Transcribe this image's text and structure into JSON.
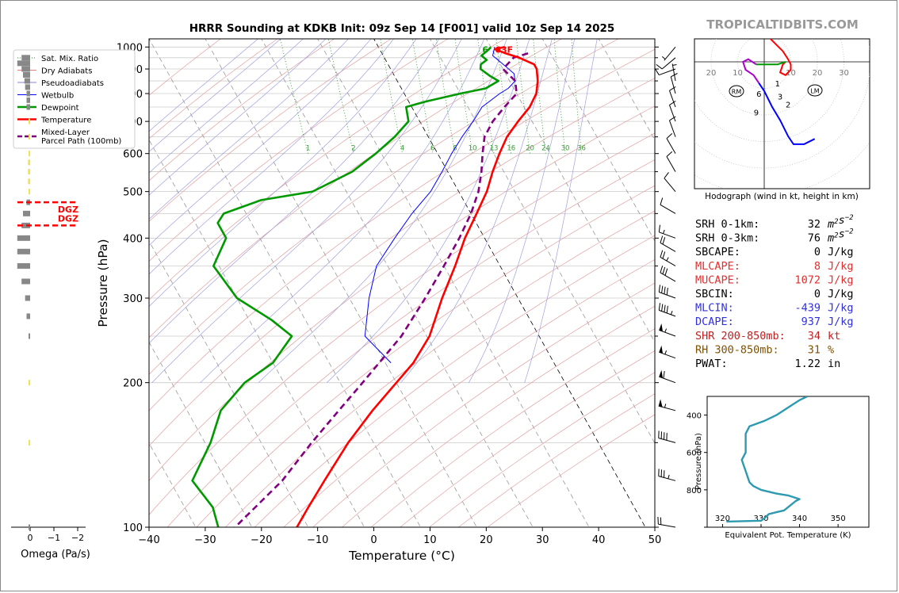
{
  "brand": "TROPICALTIDBITS.COM",
  "chart_data": [
    {
      "type": "skew-t",
      "title": "HRRR Sounding at KDKB Init: 09z Sep 14 [F001] valid 10z Sep 14 2025",
      "xlabel": "Temperature (°C)",
      "ylabel": "Pressure (hPa)",
      "xlim": [
        -40,
        50
      ],
      "ylim": [
        1040,
        100
      ],
      "x_ticks": [
        "−40",
        "−30",
        "−20",
        "−10",
        "0",
        "10",
        "20",
        "30",
        "40",
        "50"
      ],
      "x_tick_values": [
        -40,
        -30,
        -20,
        -10,
        0,
        10,
        20,
        30,
        40,
        50
      ],
      "y_ticks": [
        "100",
        "200",
        "300",
        "400",
        "500",
        "600",
        "700",
        "800",
        "900",
        "1000"
      ],
      "y_tick_values": [
        100,
        200,
        300,
        400,
        500,
        600,
        700,
        800,
        900,
        1000
      ],
      "legend": {
        "placement": "upper-left",
        "entries": [
          {
            "label": "Sat. Mix. Ratio",
            "color": "#2a8a2a",
            "style": "dotted"
          },
          {
            "label": "Dry Adiabats",
            "color": "#e08080",
            "style": "solid"
          },
          {
            "label": "Pseudoadiabats",
            "color": "#8080d0",
            "style": "solid"
          },
          {
            "label": "Wetbulb",
            "color": "#0000ff",
            "style": "solid"
          },
          {
            "label": "Dewpoint",
            "color": "#009900",
            "style": "solid-thick"
          },
          {
            "label": "Temperature",
            "color": "#ff0000",
            "style": "solid-thick"
          },
          {
            "label": "Mixed-Layer\nParcel Path (100mb)",
            "color": "#800080",
            "style": "dashed"
          }
        ]
      },
      "mixing_ratio_labels": [
        "1",
        "2",
        "4",
        "6",
        "8",
        "10",
        "13",
        "16",
        "20",
        "24",
        "30",
        "36"
      ],
      "mixing_ratio_values": [
        1,
        2,
        4,
        6,
        8,
        10,
        13,
        16,
        20,
        24,
        30,
        36
      ],
      "surface_dewpoint_label": "6",
      "surface_temp_label": "63F",
      "series": [
        {
          "name": "Temperature",
          "color": "#ff0000",
          "points": [
            [
              1000,
              22.5
            ],
            [
              990,
              20.5
            ],
            [
              970,
              22.0
            ],
            [
              950,
              24.0
            ],
            [
              920,
              26.0
            ],
            [
              900,
              26.0
            ],
            [
              850,
              25.0
            ],
            [
              800,
              23.5
            ],
            [
              750,
              21.0
            ],
            [
              700,
              17.5
            ],
            [
              650,
              14.0
            ],
            [
              600,
              11.0
            ],
            [
              550,
              8.0
            ],
            [
              500,
              5.0
            ],
            [
              450,
              1.0
            ],
            [
              400,
              -3.5
            ],
            [
              350,
              -8.0
            ],
            [
              300,
              -13.5
            ],
            [
              250,
              -19.5
            ],
            [
              220,
              -25.0
            ],
            [
              200,
              -30.0
            ],
            [
              175,
              -37.0
            ],
            [
              150,
              -44.5
            ],
            [
              125,
              -52.5
            ],
            [
              110,
              -58.0
            ],
            [
              100,
              -62.0
            ]
          ]
        },
        {
          "name": "Dewpoint",
          "color": "#009900",
          "points": [
            [
              1000,
              20.0
            ],
            [
              990,
              19.5
            ],
            [
              960,
              17.5
            ],
            [
              940,
              18.0
            ],
            [
              920,
              16.5
            ],
            [
              900,
              16.0
            ],
            [
              870,
              17.0
            ],
            [
              850,
              18.0
            ],
            [
              820,
              15.0
            ],
            [
              800,
              10.0
            ],
            [
              770,
              3.0
            ],
            [
              750,
              -1.0
            ],
            [
              700,
              -2.0
            ],
            [
              650,
              -6.0
            ],
            [
              600,
              -11.0
            ],
            [
              550,
              -17.0
            ],
            [
              500,
              -26.0
            ],
            [
              480,
              -36.0
            ],
            [
              450,
              -44.0
            ],
            [
              430,
              -46.0
            ],
            [
              400,
              -46.0
            ],
            [
              350,
              -51.0
            ],
            [
              300,
              -50.0
            ],
            [
              270,
              -46.0
            ],
            [
              250,
              -44.0
            ],
            [
              220,
              -50.0
            ],
            [
              200,
              -57.0
            ],
            [
              175,
              -64.0
            ],
            [
              150,
              -69.0
            ],
            [
              125,
              -76.0
            ],
            [
              110,
              -75.0
            ],
            [
              100,
              -76.0
            ]
          ]
        },
        {
          "name": "Wetbulb",
          "color": "#0000ff",
          "points": [
            [
              1000,
              20.7
            ],
            [
              960,
              19.5
            ],
            [
              920,
              20.5
            ],
            [
              880,
              21.5
            ],
            [
              850,
              21.0
            ],
            [
              820,
              19.0
            ],
            [
              800,
              17.0
            ],
            [
              750,
              12.5
            ],
            [
              700,
              9.5
            ],
            [
              650,
              6.0
            ],
            [
              600,
              2.5
            ],
            [
              550,
              -1.0
            ],
            [
              500,
              -5.0
            ],
            [
              450,
              -10.5
            ],
            [
              400,
              -16.0
            ],
            [
              350,
              -22.0
            ],
            [
              300,
              -26.5
            ],
            [
              250,
              -31.0
            ],
            [
              220,
              -29.0
            ]
          ]
        },
        {
          "name": "Mixed-Layer Parcel Path (100mb)",
          "color": "#800080",
          "points": [
            [
              970,
              26.0
            ],
            [
              950,
              23.0
            ],
            [
              900,
              20.0
            ],
            [
              850,
              21.0
            ],
            [
              800,
              20.0
            ],
            [
              750,
              16.5
            ],
            [
              700,
              13.0
            ],
            [
              650,
              10.0
            ],
            [
              600,
              8.0
            ],
            [
              550,
              6.0
            ],
            [
              500,
              3.5
            ],
            [
              450,
              0.0
            ],
            [
              400,
              -4.5
            ],
            [
              350,
              -10.0
            ],
            [
              300,
              -16.5
            ],
            [
              250,
              -24.5
            ],
            [
              200,
              -36.0
            ],
            [
              175,
              -43.0
            ],
            [
              150,
              -51.0
            ],
            [
              125,
              -60.0
            ],
            [
              100,
              -73.0
            ]
          ]
        }
      ]
    },
    {
      "type": "bar",
      "title": "",
      "xlabel": "Omega (Pa/s)",
      "x_ticks": [
        "0",
        "−1",
        "−2"
      ],
      "x_tick_values": [
        0,
        -1,
        -2
      ],
      "dgz_label": "DGZ",
      "dgz_pressures": [
        425,
        475
      ],
      "pressures": [
        100,
        150,
        200,
        250,
        275,
        300,
        325,
        350,
        375,
        400,
        425,
        450,
        475,
        500,
        525,
        550,
        575,
        600,
        650,
        700,
        750,
        775,
        800,
        825,
        850,
        875,
        900,
        925,
        950
      ],
      "values": [
        -0.02,
        -0.02,
        -0.02,
        -0.02,
        -0.05,
        -0.07,
        -0.12,
        -0.18,
        -0.18,
        -0.18,
        -0.12,
        -0.1,
        -0.05,
        -0.02,
        -0.03,
        -0.03,
        -0.03,
        -0.02,
        -0.02,
        -0.02,
        -0.05,
        -0.05,
        -0.05,
        -0.07,
        -0.08,
        -0.1,
        -0.12,
        -0.18,
        -0.12
      ]
    },
    {
      "type": "line",
      "title": "",
      "xlabel": "Equivalent Pot. Temperature (K)",
      "ylabel": "Pressure (hPa)",
      "x_ticks": [
        "320",
        "330",
        "340",
        "350"
      ],
      "x_tick_values": [
        320,
        330,
        340,
        350
      ],
      "y_ticks": [
        "400",
        "600",
        "800"
      ],
      "y_tick_values": [
        400,
        600,
        800
      ],
      "xlim": [
        316,
        358
      ],
      "ylim": [
        1000,
        300
      ],
      "series": [
        {
          "name": "",
          "color": "#2e9ab0",
          "points": [
            [
              321,
              970
            ],
            [
              330,
              965
            ],
            [
              331,
              950
            ],
            [
              332,
              930
            ],
            [
              334,
              920
            ],
            [
              336,
              910
            ],
            [
              339,
              860
            ],
            [
              340,
              850
            ],
            [
              337,
              830
            ],
            [
              334,
              820
            ],
            [
              330,
              800
            ],
            [
              328,
              780
            ],
            [
              327,
              760
            ],
            [
              326,
              700
            ],
            [
              325,
              640
            ],
            [
              326,
              600
            ],
            [
              326,
              550
            ],
            [
              326,
              500
            ],
            [
              327,
              460
            ],
            [
              331,
              430
            ],
            [
              334,
              400
            ],
            [
              337,
              360
            ],
            [
              340,
              320
            ],
            [
              342,
              300
            ]
          ]
        }
      ]
    },
    {
      "type": "hodograph",
      "caption": "Hodograph (wind in kt, height in km)",
      "ring_labels": [
        "20",
        "10",
        "10",
        "20",
        "30"
      ],
      "ring_label_values": [
        20,
        10,
        10,
        20,
        30
      ],
      "rm_label": "RM",
      "lm_label": "LM",
      "height_labels": [
        "1",
        "2",
        "3",
        "6",
        "9"
      ],
      "series": [
        {
          "name": "0-3 km",
          "color": "#ff0000",
          "points": [
            [
              -8,
              14
            ],
            [
              -4,
              12
            ],
            [
              2,
              9
            ],
            [
              7,
              4
            ],
            [
              9,
              1
            ],
            [
              10,
              -1
            ],
            [
              10,
              -3
            ],
            [
              8,
              -5
            ],
            [
              6,
              -4
            ],
            [
              7,
              -1
            ],
            [
              8,
              0
            ]
          ]
        },
        {
          "name": "3-6 km",
          "color": "#009900",
          "points": [
            [
              8,
              0
            ],
            [
              5,
              -1
            ],
            [
              2,
              -1
            ],
            [
              -1,
              -1
            ],
            [
              -3,
              -1
            ]
          ]
        },
        {
          "name": "6-9 km",
          "color": "#aa00cc",
          "points": [
            [
              -3,
              -1
            ],
            [
              -6,
              1
            ],
            [
              -8,
              0
            ],
            [
              -7,
              -3
            ],
            [
              -4,
              -5
            ],
            [
              -2,
              -8
            ]
          ]
        },
        {
          "name": "9-12 km",
          "color": "#0000ff",
          "points": [
            [
              -2,
              -8
            ],
            [
              0,
              -11
            ],
            [
              3,
              -17
            ],
            [
              6,
              -22
            ],
            [
              9,
              -28
            ],
            [
              11,
              -31
            ],
            [
              15,
              -31
            ],
            [
              19,
              -29
            ]
          ]
        }
      ]
    }
  ],
  "indices": [
    {
      "label": "SRH 0-1km:",
      "value": "32",
      "unit": "m²s⁻²",
      "color": "#000000"
    },
    {
      "label": "SRH 0-3km:",
      "value": "76",
      "unit": "m²s⁻²",
      "color": "#000000"
    },
    {
      "label": "SBCAPE:",
      "value": "0",
      "unit": "J/kg",
      "color": "#000000"
    },
    {
      "label": "MLCAPE:",
      "value": "8",
      "unit": "J/kg",
      "color": "#e03030"
    },
    {
      "label": "MUCAPE:",
      "value": "1072",
      "unit": "J/kg",
      "color": "#e03030"
    },
    {
      "label": "SBCIN:",
      "value": "0",
      "unit": "J/kg",
      "color": "#000000"
    },
    {
      "label": "MLCIN:",
      "value": "-439",
      "unit": "J/kg",
      "color": "#3030e0"
    },
    {
      "label": "DCAPE:",
      "value": "937",
      "unit": "J/kg",
      "color": "#3030e0"
    },
    {
      "label": "SHR 200-850mb:",
      "value": "34",
      "unit": "kt",
      "color": "#c02020"
    },
    {
      "label": "RH 300-850mb:",
      "value": "31",
      "unit": "%",
      "color": "#805000"
    },
    {
      "label": "PWAT:",
      "value": "1.22",
      "unit": "in",
      "color": "#000000"
    }
  ],
  "wind_barbs": [
    {
      "p": 100,
      "speed": 20,
      "dir": 280
    },
    {
      "p": 125,
      "speed": 35,
      "dir": 285
    },
    {
      "p": 150,
      "speed": 40,
      "dir": 285
    },
    {
      "p": 175,
      "speed": 55,
      "dir": 285
    },
    {
      "p": 200,
      "speed": 60,
      "dir": 290
    },
    {
      "p": 225,
      "speed": 55,
      "dir": 290
    },
    {
      "p": 250,
      "speed": 55,
      "dir": 290
    },
    {
      "p": 275,
      "speed": 45,
      "dir": 290
    },
    {
      "p": 300,
      "speed": 40,
      "dir": 290
    },
    {
      "p": 325,
      "speed": 30,
      "dir": 300
    },
    {
      "p": 350,
      "speed": 25,
      "dir": 300
    },
    {
      "p": 375,
      "speed": 20,
      "dir": 300
    },
    {
      "p": 400,
      "speed": 15,
      "dir": 290
    },
    {
      "p": 450,
      "speed": 10,
      "dir": 300
    },
    {
      "p": 500,
      "speed": 10,
      "dir": 320
    },
    {
      "p": 550,
      "speed": 10,
      "dir": 330
    },
    {
      "p": 600,
      "speed": 10,
      "dir": 330
    },
    {
      "p": 650,
      "speed": 10,
      "dir": 340
    },
    {
      "p": 700,
      "speed": 10,
      "dir": 340
    },
    {
      "p": 750,
      "speed": 10,
      "dir": 340
    },
    {
      "p": 800,
      "speed": 10,
      "dir": 345
    },
    {
      "p": 850,
      "speed": 5,
      "dir": 350
    },
    {
      "p": 900,
      "speed": 10,
      "dir": 250
    },
    {
      "p": 950,
      "speed": 10,
      "dir": 230
    },
    {
      "p": 1000,
      "speed": 5,
      "dir": 220
    }
  ]
}
